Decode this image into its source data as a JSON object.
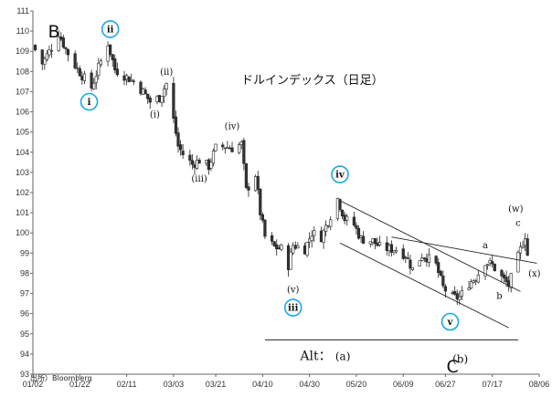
{
  "chart_data": {
    "type": "candlestick",
    "title": "ドルインデックス（日足）",
    "source": "出所）Bloomberg",
    "ylim": [
      93,
      111
    ],
    "y_ticks": [
      93,
      94,
      95,
      96,
      97,
      98,
      99,
      100,
      101,
      102,
      103,
      104,
      105,
      106,
      107,
      108,
      109,
      110,
      111
    ],
    "x_ticks": [
      "01/02",
      "01/22",
      "02/11",
      "03/03",
      "03/21",
      "04/10",
      "04/30",
      "05/20",
      "06/09",
      "06/27",
      "07/17",
      "08/06"
    ],
    "xlim": [
      "01/02",
      "08/06"
    ],
    "close_path": [
      [
        "01/02",
        109.3
      ],
      [
        "01/06",
        108.4
      ],
      [
        "01/10",
        109.2
      ],
      [
        "01/13",
        109.9
      ],
      [
        "01/16",
        109.1
      ],
      [
        "01/20",
        108.3
      ],
      [
        "01/23",
        107.8
      ],
      [
        "01/27",
        107.2
      ],
      [
        "01/30",
        108.2
      ],
      [
        "02/03",
        109.4
      ],
      [
        "02/06",
        108.1
      ],
      [
        "02/10",
        107.8
      ],
      [
        "02/14",
        107.5
      ],
      [
        "02/18",
        107.0
      ],
      [
        "02/21",
        106.5
      ],
      [
        "02/25",
        106.7
      ],
      [
        "02/28",
        107.4
      ],
      [
        "03/03",
        105.6
      ],
      [
        "03/05",
        104.3
      ],
      [
        "03/07",
        103.9
      ],
      [
        "03/11",
        103.4
      ],
      [
        "03/14",
        103.6
      ],
      [
        "03/18",
        103.3
      ],
      [
        "03/21",
        104.2
      ],
      [
        "03/25",
        104.3
      ],
      [
        "03/28",
        104.2
      ],
      [
        "04/01",
        104.4
      ],
      [
        "04/03",
        102.1
      ],
      [
        "04/07",
        102.9
      ],
      [
        "04/09",
        101.0
      ],
      [
        "04/11",
        99.8
      ],
      [
        "04/15",
        99.3
      ],
      [
        "04/18",
        99.2
      ],
      [
        "04/21",
        98.4
      ],
      [
        "04/23",
        99.4
      ],
      [
        "04/28",
        99.2
      ],
      [
        "05/01",
        100.0
      ],
      [
        "05/05",
        99.8
      ],
      [
        "05/08",
        100.6
      ],
      [
        "05/12",
        101.7
      ],
      [
        "05/15",
        100.7
      ],
      [
        "05/19",
        100.4
      ],
      [
        "05/22",
        99.7
      ],
      [
        "05/27",
        99.6
      ],
      [
        "05/30",
        99.3
      ],
      [
        "06/03",
        99.2
      ],
      [
        "06/06",
        99.2
      ],
      [
        "06/10",
        98.9
      ],
      [
        "06/13",
        98.2
      ],
      [
        "06/17",
        98.9
      ],
      [
        "06/19",
        98.8
      ],
      [
        "06/23",
        98.4
      ],
      [
        "06/26",
        97.3
      ],
      [
        "06/30",
        96.8
      ],
      [
        "07/03",
        96.8
      ],
      [
        "07/07",
        97.5
      ],
      [
        "07/10",
        97.8
      ],
      [
        "07/14",
        98.6
      ],
      [
        "07/17",
        98.4
      ],
      [
        "07/21",
        97.8
      ],
      [
        "07/24",
        97.4
      ],
      [
        "07/28",
        98.8
      ],
      [
        "07/31",
        99.9
      ],
      [
        "08/01",
        98.9
      ]
    ],
    "wave_labels": [
      {
        "text": "B",
        "date": "01/11",
        "value": 110.0,
        "style": "large"
      },
      {
        "text": "ii",
        "date": "02/04",
        "value": 110.1,
        "style": "circled"
      },
      {
        "text": "i",
        "date": "01/26",
        "value": 106.5,
        "style": "circled"
      },
      {
        "text": "(ii)",
        "date": "02/28",
        "value": 108.0,
        "style": "paren"
      },
      {
        "text": "(i)",
        "date": "02/23",
        "value": 105.9,
        "style": "paren"
      },
      {
        "text": "(iv)",
        "date": "03/28",
        "value": 105.3,
        "style": "paren"
      },
      {
        "text": "(iii)",
        "date": "03/14",
        "value": 102.7,
        "style": "paren"
      },
      {
        "text": "(v)",
        "date": "04/23",
        "value": 97.2,
        "style": "paren"
      },
      {
        "text": "iii",
        "date": "04/23",
        "value": 96.3,
        "style": "circled"
      },
      {
        "text": "iv",
        "date": "05/13",
        "value": 102.9,
        "style": "circled"
      },
      {
        "text": "v",
        "date": "06/29",
        "value": 95.6,
        "style": "circled"
      },
      {
        "text": "C",
        "date": "06/30",
        "value": 93.4,
        "style": "large"
      },
      {
        "text": "a",
        "date": "07/14",
        "value": 99.4,
        "style": "small"
      },
      {
        "text": "b",
        "date": "07/20",
        "value": 96.9,
        "style": "small"
      },
      {
        "text": "(w)",
        "date": "07/27",
        "value": 101.2,
        "style": "paren"
      },
      {
        "text": "c",
        "date": "07/28",
        "value": 100.5,
        "style": "small"
      },
      {
        "text": "(x)",
        "date": "08/04",
        "value": 98.0,
        "style": "paren"
      }
    ],
    "trend_lines": [
      {
        "from": [
          "05/13",
          101.6
        ],
        "to": [
          "07/29",
          97.1
        ]
      },
      {
        "from": [
          "05/13",
          99.5
        ],
        "to": [
          "07/24",
          95.3
        ]
      },
      {
        "from": [
          "06/04",
          99.8
        ],
        "to": [
          "08/05",
          98.5
        ]
      }
    ],
    "alt_annotation": {
      "label": "Alt：",
      "a": "(a)",
      "b": "(b)",
      "line_from": [
        "04/11",
        94.7
      ],
      "line_to": [
        "07/28",
        94.7
      ]
    },
    "colors": {
      "up": "#ffffff",
      "down": "#333333",
      "line": "#222222",
      "grid": "#999999",
      "circle": "#1ba9df"
    }
  }
}
